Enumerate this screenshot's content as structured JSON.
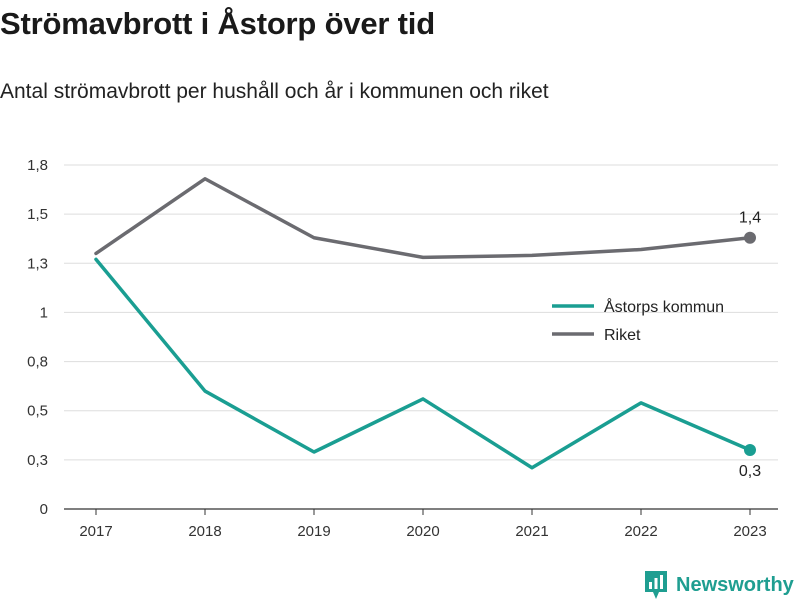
{
  "title": "Strömavbrott i Åstorp över tid",
  "subtitle": "Antal strömavbrott per hushåll och år i kommunen och riket",
  "brand": {
    "name": "Newsworthy"
  },
  "colors": {
    "kommun": "#1a9e92",
    "riket": "#6b6b70",
    "grid": "#dddddd",
    "axis": "#333333"
  },
  "chart_data": {
    "type": "line",
    "x": [
      2017,
      2018,
      2019,
      2020,
      2021,
      2022,
      2023
    ],
    "series": [
      {
        "name": "Åstorps kommun",
        "values": [
          1.27,
          0.6,
          0.29,
          0.56,
          0.21,
          0.54,
          0.3
        ]
      },
      {
        "name": "Riket",
        "values": [
          1.3,
          1.68,
          1.38,
          1.28,
          1.29,
          1.32,
          1.38
        ]
      }
    ],
    "yticks": [
      0,
      0.25,
      0.5,
      0.75,
      1,
      1.25,
      1.5,
      1.75
    ],
    "ytick_labels": [
      "0",
      "0,3",
      "0,5",
      "0,8",
      "1",
      "1,3",
      "1,5",
      "1,8"
    ],
    "ylim": [
      0,
      1.75
    ],
    "end_labels": {
      "Riket": "1,4",
      "Åstorps kommun": "0,3"
    },
    "grid": true,
    "legend": "right"
  }
}
